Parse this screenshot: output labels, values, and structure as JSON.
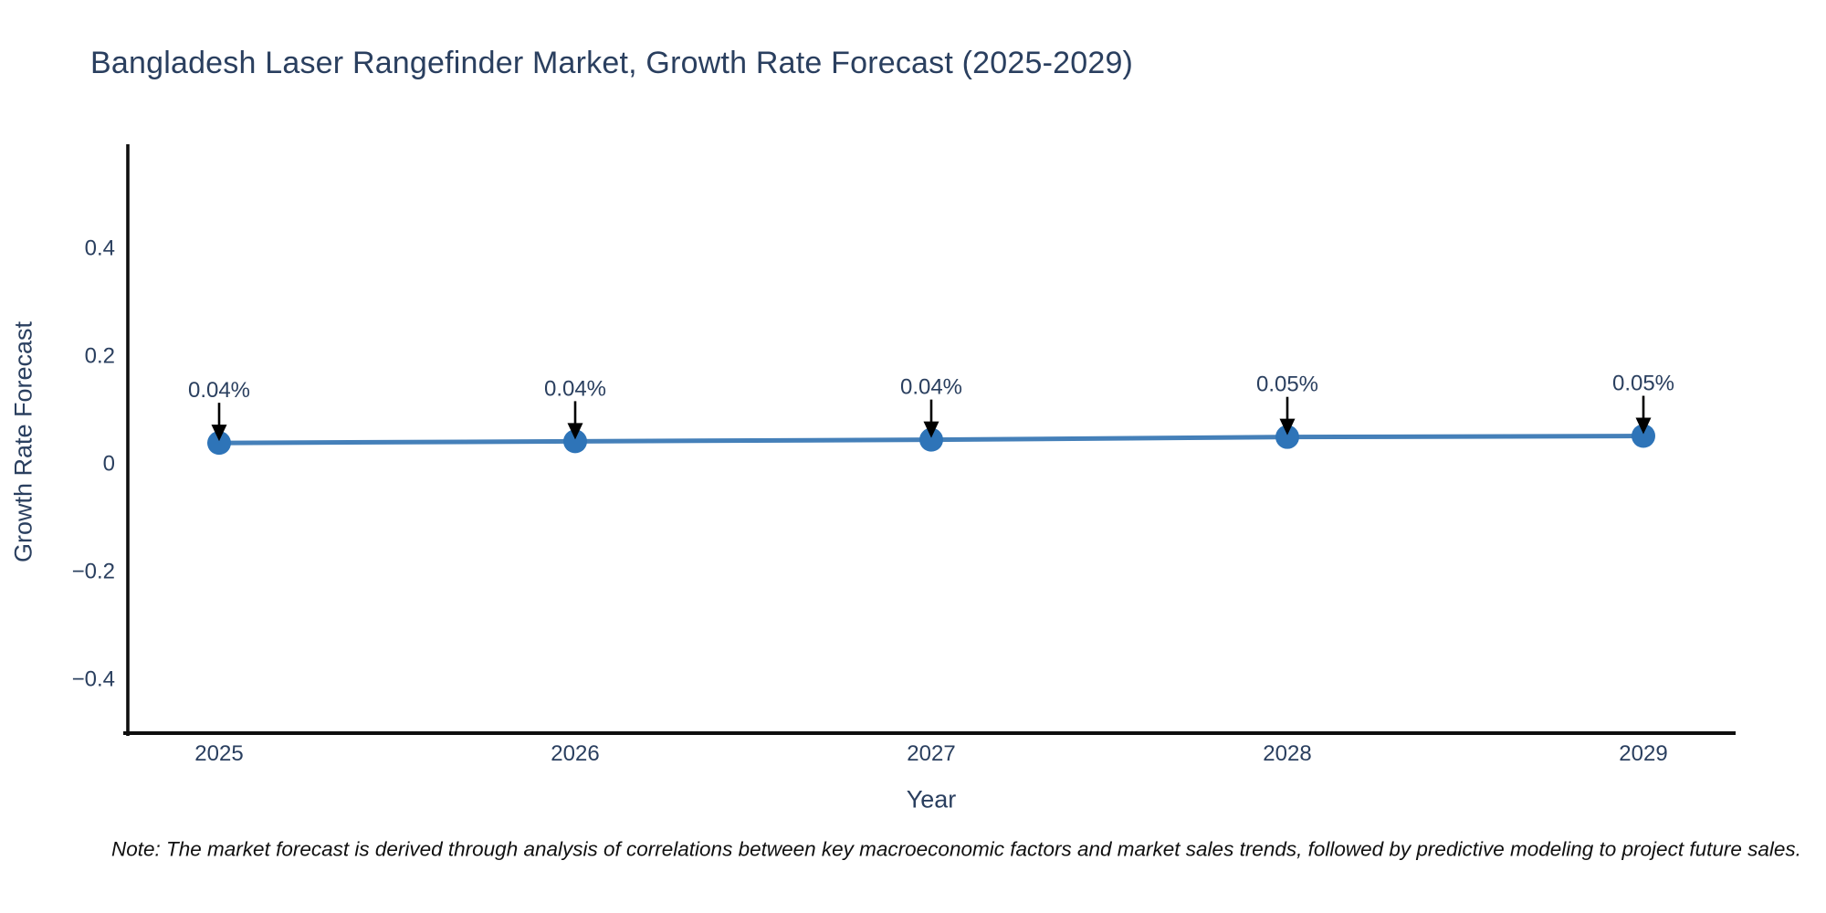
{
  "chart_data": {
    "type": "line",
    "title": "Bangladesh Laser Rangefinder Market, Growth Rate Forecast (2025-2029)",
    "xlabel": "Year",
    "ylabel": "Growth Rate Forecast",
    "categories": [
      "2025",
      "2026",
      "2027",
      "2028",
      "2029"
    ],
    "series": [
      {
        "name": "Growth Rate Forecast",
        "values": [
          0.04,
          0.04,
          0.04,
          0.05,
          0.05
        ],
        "point_labels": [
          "0.04%",
          "0.04%",
          "0.04%",
          "0.05%",
          "0.05%"
        ],
        "plot_values_estimate": [
          0.037,
          0.04,
          0.043,
          0.048,
          0.05
        ]
      }
    ],
    "ytick_labels": [
      "0.4",
      "0.2",
      "0",
      "−0.2",
      "−0.4"
    ],
    "ytick_values": [
      0.4,
      0.2,
      0,
      -0.2,
      -0.4
    ],
    "ylim": [
      -0.5,
      0.59
    ],
    "grid": false,
    "legend": false,
    "note": "Note: The market forecast is derived through analysis of correlations between key macroeconomic factors and market sales trends, followed by predictive modeling to project future sales."
  },
  "colors": {
    "title_text": "#2a3f5f",
    "tick_text": "#2a3f5f",
    "axis_line": "#0f0f0f",
    "series_line": "#4580b9",
    "marker_fill": "#2e74b8",
    "annotation_text": "#2a3f5f",
    "annotation_arrow": "#000000",
    "note_text": "#101010",
    "background": "#ffffff"
  }
}
